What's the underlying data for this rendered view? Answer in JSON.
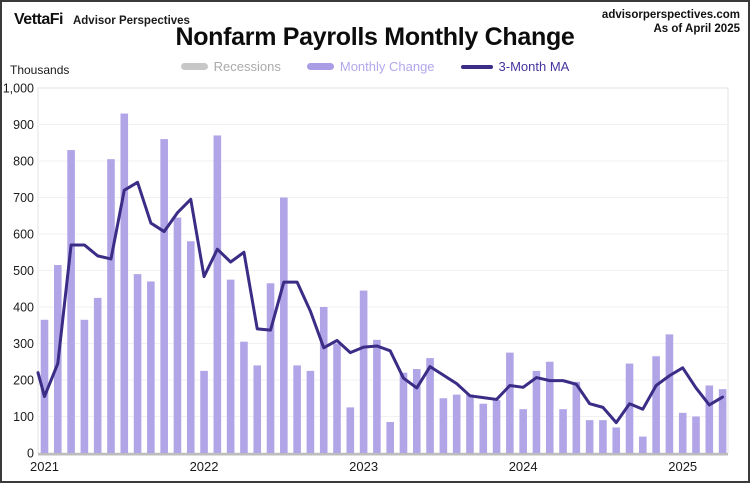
{
  "header": {
    "logo": "VettaFi",
    "logo_sub": "Advisor Perspectives",
    "source_site": "advisorperspectives.com",
    "as_of": "As of April 2025"
  },
  "title": "Nonfarm Payrolls Monthly Change",
  "legend": {
    "items": [
      {
        "label": "Recessions",
        "swatch": "#c7c7c7",
        "text_color": "#aaaaaa",
        "type": "bar"
      },
      {
        "label": "Monthly Change",
        "swatch": "#aa9de6",
        "text_color": "#b3a7ec",
        "type": "bar"
      },
      {
        "label": "3-Month MA",
        "swatch": "#3b2c86",
        "text_color": "#44359f",
        "type": "line"
      }
    ]
  },
  "y_axis": {
    "title": "Thousands",
    "ticks": [
      "1,000",
      "900",
      "800",
      "700",
      "600",
      "500",
      "400",
      "300",
      "200",
      "100",
      "0"
    ],
    "max": 1000,
    "min": 0
  },
  "x_axis": {
    "labels": [
      "2021",
      "2022",
      "2023",
      "2024",
      "2025"
    ]
  },
  "colors": {
    "bar": "#b1a5e7",
    "ma_line": "#3b2c86",
    "gridline": "#f1f1f1",
    "plot_border": "#e3e3e3",
    "baseline": "#bdbdbd",
    "tick_text": "#1a1a1a"
  },
  "chart_data": {
    "type": "bar",
    "title": "Nonfarm Payrolls Monthly Change",
    "ylabel": "Thousands",
    "ylim": [
      0,
      1000
    ],
    "grid": true,
    "legend_position": "top",
    "months": [
      "2021-01",
      "2021-02",
      "2021-03",
      "2021-04",
      "2021-05",
      "2021-06",
      "2021-07",
      "2021-08",
      "2021-09",
      "2021-10",
      "2021-11",
      "2021-12",
      "2022-01",
      "2022-02",
      "2022-03",
      "2022-04",
      "2022-05",
      "2022-06",
      "2022-07",
      "2022-08",
      "2022-09",
      "2022-10",
      "2022-11",
      "2022-12",
      "2023-01",
      "2023-02",
      "2023-03",
      "2023-04",
      "2023-05",
      "2023-06",
      "2023-07",
      "2023-08",
      "2023-09",
      "2023-10",
      "2023-11",
      "2023-12",
      "2024-01",
      "2024-02",
      "2024-03",
      "2024-04",
      "2024-05",
      "2024-06",
      "2024-07",
      "2024-08",
      "2024-09",
      "2024-10",
      "2024-11",
      "2024-12",
      "2025-01",
      "2025-02",
      "2025-03",
      "2025-04"
    ],
    "series": [
      {
        "name": "Monthly Change",
        "type": "bar",
        "values": [
          365,
          515,
          830,
          365,
          425,
          805,
          930,
          490,
          470,
          860,
          645,
          580,
          225,
          870,
          475,
          305,
          240,
          465,
          700,
          240,
          225,
          400,
          300,
          125,
          445,
          310,
          85,
          220,
          230,
          260,
          150,
          160,
          160,
          135,
          145,
          275,
          120,
          225,
          250,
          120,
          195,
          90,
          90,
          70,
          245,
          45,
          265,
          325,
          110,
          100,
          185,
          175
        ]
      },
      {
        "name": "3-Month MA",
        "type": "line",
        "lead_in_value": 220,
        "values": [
          155,
          245,
          570,
          570,
          540,
          531.7,
          720,
          741.7,
          630,
          606.7,
          658.3,
          695,
          483.3,
          558.3,
          523.3,
          550,
          340,
          336.7,
          468.3,
          468.3,
          388.3,
          288.3,
          308.3,
          275,
          290,
          293.3,
          280,
          205,
          178.3,
          236.7,
          213.3,
          190,
          156.7,
          151.7,
          146.7,
          185,
          180,
          206.7,
          198.3,
          198.3,
          188.3,
          135,
          125,
          83.3,
          135,
          120,
          185,
          211.7,
          233.3,
          178.3,
          131.7,
          153.3
        ]
      }
    ],
    "recession_bands": []
  }
}
